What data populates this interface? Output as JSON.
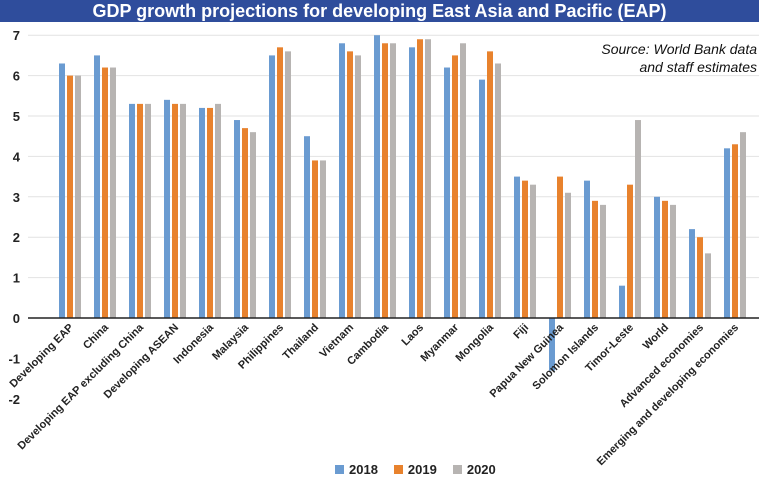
{
  "chart_data": {
    "type": "bar",
    "title": "GDP growth projections for developing East Asia and Pacific (EAP)",
    "annotation": [
      "Source: World Bank data",
      "and staff estimates"
    ],
    "ylim": [
      -2,
      7
    ],
    "yticks": [
      -2,
      -1,
      0,
      1,
      2,
      3,
      4,
      5,
      6,
      7
    ],
    "grid": true,
    "legend": "bottom",
    "categories": [
      "Developing EAP",
      "China",
      "Developing EAP excluding China",
      "Developing ASEAN",
      "Indonesia",
      "Malaysia",
      "Philippines",
      "Thailand",
      "Vietnam",
      "Cambodia",
      "Laos",
      "Myanmar",
      "Mongolia",
      "Fiji",
      "Papua New Guinea",
      "Solomon Islands",
      "Timor-Leste",
      "World",
      "Advanced economies",
      "Emerging and developing economies"
    ],
    "series": [
      {
        "name": "2018",
        "color": "#6a9bd1",
        "values": [
          6.3,
          6.5,
          5.3,
          5.4,
          5.2,
          4.9,
          6.5,
          4.5,
          6.8,
          7.0,
          6.7,
          6.2,
          5.9,
          3.5,
          -1.3,
          3.4,
          0.8,
          3.0,
          2.2,
          4.2
        ]
      },
      {
        "name": "2019",
        "color": "#e8822d",
        "values": [
          6.0,
          6.2,
          5.3,
          5.3,
          5.2,
          4.7,
          6.7,
          3.9,
          6.6,
          6.8,
          6.9,
          6.5,
          6.6,
          3.4,
          3.5,
          2.9,
          3.3,
          2.9,
          2.0,
          4.3
        ]
      },
      {
        "name": "2020",
        "color": "#b7b4b2",
        "values": [
          6.0,
          6.2,
          5.3,
          5.3,
          5.3,
          4.6,
          6.6,
          3.9,
          6.5,
          6.8,
          6.9,
          6.8,
          6.3,
          3.3,
          3.1,
          2.8,
          4.9,
          2.8,
          1.6,
          4.6
        ]
      }
    ]
  }
}
